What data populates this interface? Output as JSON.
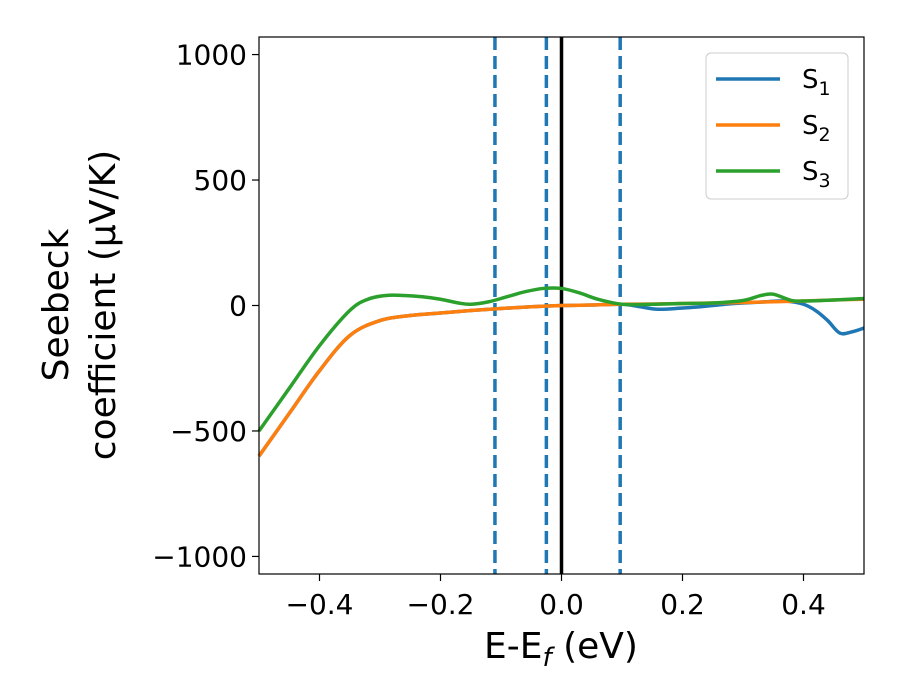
{
  "chart_data": {
    "type": "line",
    "xlabel": "E-E",
    "xlabel_sub": "f",
    "xlabel_unit": " (eV)",
    "ylabel_line1": "Seebeck",
    "ylabel_line2": "coefficient  (μV/K)",
    "xlim": [
      -0.5,
      0.5
    ],
    "ylim": [
      -1070,
      1070
    ],
    "x_ticks": [
      -0.4,
      -0.2,
      0.0,
      0.2,
      0.4
    ],
    "x_tick_labels": [
      "−0.4",
      "−0.2",
      "0.0",
      "0.2",
      "0.4"
    ],
    "y_ticks": [
      -1000,
      -500,
      0,
      500,
      1000
    ],
    "y_tick_labels": [
      "−1000",
      "−500",
      "0",
      "500",
      "1000"
    ],
    "grid": false,
    "legend_position": "top-right",
    "series": [
      {
        "name": "S",
        "sub": "1",
        "color": "#1f77b4",
        "x": [
          -0.5,
          -0.45,
          -0.4,
          -0.35,
          -0.3,
          -0.25,
          -0.2,
          -0.15,
          -0.1,
          -0.05,
          0.0,
          0.05,
          0.1,
          0.13,
          0.16,
          0.2,
          0.23,
          0.27,
          0.3,
          0.34,
          0.37,
          0.4,
          0.42,
          0.44,
          0.46,
          0.48,
          0.5
        ],
        "y": [
          -600,
          -430,
          -260,
          -120,
          -60,
          -40,
          -30,
          -20,
          -12,
          -5,
          0,
          2,
          5,
          -5,
          -15,
          -10,
          -5,
          5,
          10,
          15,
          18,
          5,
          -20,
          -60,
          -110,
          -105,
          -90
        ]
      },
      {
        "name": "S",
        "sub": "2",
        "color": "#ff7f0e",
        "x": [
          -0.5,
          -0.45,
          -0.4,
          -0.35,
          -0.3,
          -0.25,
          -0.2,
          -0.15,
          -0.1,
          -0.05,
          0.0,
          0.05,
          0.1,
          0.15,
          0.2,
          0.25,
          0.3,
          0.35,
          0.4,
          0.45,
          0.5
        ],
        "y": [
          -600,
          -430,
          -260,
          -120,
          -60,
          -40,
          -30,
          -20,
          -12,
          -5,
          0,
          2,
          5,
          6,
          8,
          10,
          12,
          15,
          18,
          22,
          25
        ]
      },
      {
        "name": "S",
        "sub": "3",
        "color": "#2ca02c",
        "x": [
          -0.5,
          -0.45,
          -0.4,
          -0.35,
          -0.32,
          -0.29,
          -0.26,
          -0.23,
          -0.2,
          -0.17,
          -0.15,
          -0.12,
          -0.09,
          -0.06,
          -0.03,
          0.0,
          0.03,
          0.06,
          0.1,
          0.15,
          0.2,
          0.25,
          0.3,
          0.33,
          0.35,
          0.38,
          0.4,
          0.45,
          0.5
        ],
        "y": [
          -500,
          -330,
          -160,
          -20,
          25,
          40,
          40,
          35,
          25,
          10,
          5,
          15,
          35,
          55,
          68,
          68,
          50,
          25,
          5,
          5,
          8,
          10,
          20,
          40,
          45,
          20,
          18,
          22,
          28
        ]
      }
    ],
    "vertical_lines": [
      {
        "x": -0.11,
        "style": "dashed",
        "color": "#1f77b4"
      },
      {
        "x": -0.025,
        "style": "dashed",
        "color": "#1f77b4"
      },
      {
        "x": 0.0,
        "style": "solid",
        "color": "#000000"
      },
      {
        "x": 0.097,
        "style": "dashed",
        "color": "#1f77b4"
      }
    ]
  }
}
